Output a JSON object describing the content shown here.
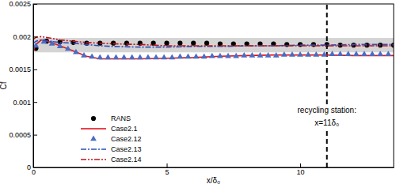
{
  "chart_data": {
    "type": "line",
    "x_label": "x/δ₀",
    "y_label": "Cf",
    "xlim": [
      0,
      13.5
    ],
    "xticks": [
      0,
      5,
      10
    ],
    "ylim": [
      0,
      0.0025
    ],
    "yticks": [
      0,
      0.0005,
      0.001,
      0.0015,
      0.002,
      0.0025
    ],
    "legend": "lower left",
    "band": {
      "lower": 0.00176,
      "upper": 0.00198
    },
    "vline": 11,
    "annotation": [
      "recycling station:",
      "x=11δ₀"
    ],
    "series": [
      {
        "name": "RANS",
        "type": "scatter",
        "marker": "circle",
        "color": "#000000",
        "x": [
          0.1,
          0.5,
          1.0,
          1.5,
          2.0,
          2.5,
          3.0,
          3.5,
          4.0,
          4.5,
          5.0,
          5.5,
          6.0,
          6.5,
          7.0,
          7.5,
          8.0,
          8.5,
          9.0,
          9.5,
          10.0,
          10.5,
          11.0,
          11.5,
          12.0,
          12.5,
          13.0,
          13.5
        ],
        "values": [
          0.00182,
          0.00193,
          0.00192,
          0.00191,
          0.0019,
          0.0019,
          0.0019,
          0.0019,
          0.0019,
          0.0019,
          0.0019,
          0.0019,
          0.0019,
          0.0019,
          0.00189,
          0.00189,
          0.00189,
          0.00189,
          0.00189,
          0.00188,
          0.00188,
          0.00188,
          0.00188,
          0.00187,
          0.00187,
          0.00187,
          0.00187,
          0.00187
        ]
      },
      {
        "name": "Case2.1",
        "type": "line",
        "line_style": "solid",
        "color": "#e0141e",
        "x": [
          0,
          0.1,
          0.3,
          0.6,
          1.0,
          1.5,
          2.0,
          2.5,
          3,
          4,
          5,
          6,
          7,
          8,
          9,
          10,
          11,
          12,
          13,
          13.5
        ],
        "values": [
          0.00178,
          0.00188,
          0.00195,
          0.00192,
          0.00186,
          0.00178,
          0.0017,
          0.00166,
          0.00166,
          0.00166,
          0.00167,
          0.00168,
          0.0017,
          0.00171,
          0.00172,
          0.00172,
          0.00172,
          0.00171,
          0.00171,
          0.00171
        ]
      },
      {
        "name": "Case2.12",
        "type": "scatter",
        "marker": "triangle",
        "color": "#4a6cc4",
        "x": [
          0.1,
          0.4,
          0.7,
          1.0,
          1.3,
          1.6,
          1.9,
          2.2,
          2.5,
          2.8,
          3.1,
          3.4,
          3.7,
          4.0,
          4.3,
          4.6,
          4.9,
          5.2,
          5.5,
          5.8,
          6.1,
          6.4,
          6.7,
          7.0,
          7.3,
          7.6,
          7.9,
          8.2,
          8.5,
          8.8,
          9.1,
          9.4,
          9.7,
          10.0,
          10.3,
          10.6,
          10.9,
          11.2,
          11.5,
          11.8,
          12.1,
          12.4,
          12.7,
          13.0,
          13.3
        ],
        "values": [
          0.00186,
          0.00192,
          0.00189,
          0.00185,
          0.00181,
          0.00176,
          0.00171,
          0.00169,
          0.00168,
          0.00168,
          0.00168,
          0.00168,
          0.00168,
          0.00168,
          0.00168,
          0.00168,
          0.00168,
          0.00168,
          0.00169,
          0.00169,
          0.00169,
          0.00169,
          0.0017,
          0.0017,
          0.0017,
          0.0017,
          0.00171,
          0.00171,
          0.00171,
          0.00171,
          0.00171,
          0.00172,
          0.00172,
          0.00172,
          0.00172,
          0.00172,
          0.00172,
          0.00173,
          0.00173,
          0.00173,
          0.00173,
          0.00173,
          0.00173,
          0.00173,
          0.00173
        ]
      },
      {
        "name": "Case2.13",
        "type": "line",
        "line_style": "dashdot",
        "color": "#2f4fb8",
        "x": [
          0,
          0.1,
          0.3,
          0.6,
          1.0,
          1.5,
          2.0,
          2.5,
          3,
          4,
          5,
          6,
          7,
          8,
          9,
          10,
          11,
          12,
          13,
          13.5
        ],
        "values": [
          0.0019,
          0.00193,
          0.00195,
          0.00193,
          0.00191,
          0.0019,
          0.00188,
          0.00186,
          0.00185,
          0.00184,
          0.00184,
          0.00185,
          0.00185,
          0.00186,
          0.00186,
          0.00187,
          0.00187,
          0.00188,
          0.00188,
          0.00188
        ]
      },
      {
        "name": "Case2.14",
        "type": "line",
        "line_style": "dashdotdot",
        "color": "#c0141e",
        "x": [
          0,
          0.1,
          0.3,
          0.6,
          1.0,
          1.5,
          2.0,
          2.5,
          3,
          4,
          5,
          6,
          7,
          8,
          9,
          10,
          11,
          12,
          13,
          13.5
        ],
        "values": [
          0.00196,
          0.00199,
          0.002,
          0.00198,
          0.00195,
          0.00193,
          0.00191,
          0.0019,
          0.00189,
          0.00188,
          0.00186,
          0.00186,
          0.00186,
          0.00186,
          0.00186,
          0.00186,
          0.00186,
          0.00186,
          0.00186,
          0.00186
        ]
      }
    ]
  }
}
